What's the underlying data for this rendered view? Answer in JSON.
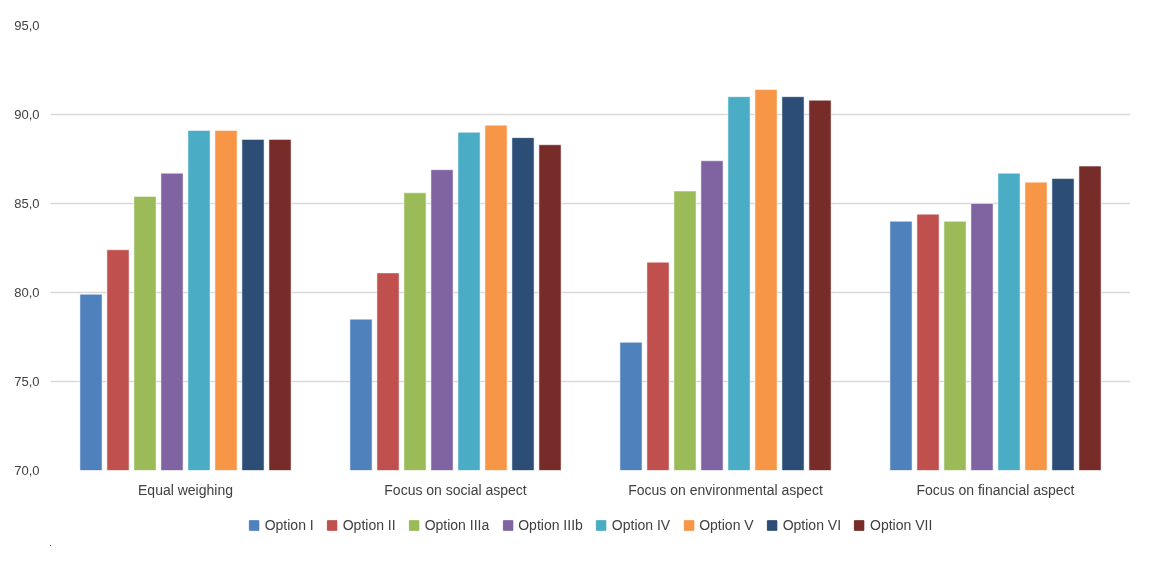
{
  "chart_data": {
    "type": "bar",
    "categories": [
      "Equal weighing",
      "Focus on social aspect",
      "Focus on environmental aspect",
      "Focus on financial aspect"
    ],
    "series": [
      {
        "name": "Option I",
        "color": "#4f81bd",
        "values": [
          79.9,
          78.5,
          77.2,
          84.0
        ]
      },
      {
        "name": "Option II",
        "color": "#c0504d",
        "values": [
          82.4,
          81.1,
          81.7,
          84.4
        ]
      },
      {
        "name": "Option IIIa",
        "color": "#9bbb59",
        "values": [
          85.4,
          85.6,
          85.7,
          84.0
        ]
      },
      {
        "name": "Option IIIb",
        "color": "#8064a2",
        "values": [
          86.7,
          86.9,
          87.4,
          85.0
        ]
      },
      {
        "name": "Option IV",
        "color": "#4bacc6",
        "values": [
          89.1,
          89.0,
          91.0,
          86.7
        ]
      },
      {
        "name": "Option V",
        "color": "#f79646",
        "values": [
          89.1,
          89.4,
          91.4,
          86.2
        ]
      },
      {
        "name": "Option VI",
        "color": "#2c4d75",
        "values": [
          88.6,
          88.7,
          91.0,
          86.4
        ]
      },
      {
        "name": "Option VII",
        "color": "#772c2a",
        "values": [
          88.6,
          88.3,
          90.8,
          87.1
        ]
      }
    ],
    "ylim": [
      70,
      95
    ],
    "yticks": [
      {
        "value": 70,
        "label": "70,0"
      },
      {
        "value": 75,
        "label": "75,0"
      },
      {
        "value": 80,
        "label": "80,0"
      },
      {
        "value": 85,
        "label": "85,0"
      },
      {
        "value": 90,
        "label": "90,0"
      },
      {
        "value": 95,
        "label": "95,0"
      }
    ],
    "grid": "y",
    "legend": "bottom"
  }
}
